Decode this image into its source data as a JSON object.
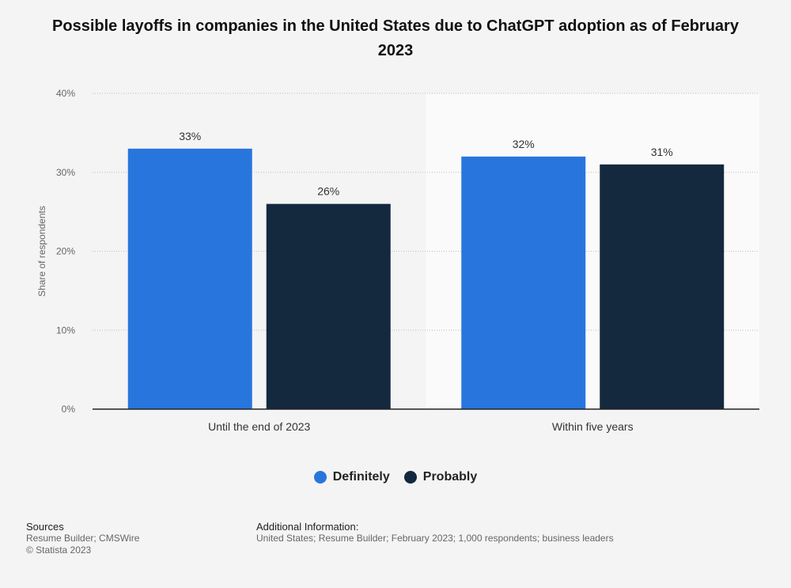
{
  "title": "Possible layoffs in companies in the United States due to ChatGPT adoption as of February 2023",
  "chart_data": {
    "type": "bar",
    "title": "Possible layoffs in companies in the United States due to ChatGPT adoption as of February 2023",
    "xlabel": "",
    "ylabel": "Share of respondents",
    "ylim": [
      0,
      40
    ],
    "yticks": [
      0,
      10,
      20,
      30,
      40
    ],
    "ytick_labels": [
      "0%",
      "10%",
      "20%",
      "30%",
      "40%"
    ],
    "categories": [
      "Until the end of 2023",
      "Within five years"
    ],
    "series": [
      {
        "name": "Definitely",
        "values": [
          33,
          32
        ],
        "labels": [
          "33%",
          "32%"
        ],
        "color": "#2876dd"
      },
      {
        "name": "Probably",
        "values": [
          26,
          31
        ],
        "labels": [
          "26%",
          "31%"
        ],
        "color": "#14283e"
      }
    ],
    "grid": true,
    "legend_position": "bottom"
  },
  "sources": {
    "heading": "Sources",
    "line1": "Resume Builder; CMSWire",
    "line2": "© Statista 2023"
  },
  "additional": {
    "heading": "Additional Information:",
    "text": "United States; Resume Builder; February 2023; 1,000 respondents; business leaders"
  }
}
